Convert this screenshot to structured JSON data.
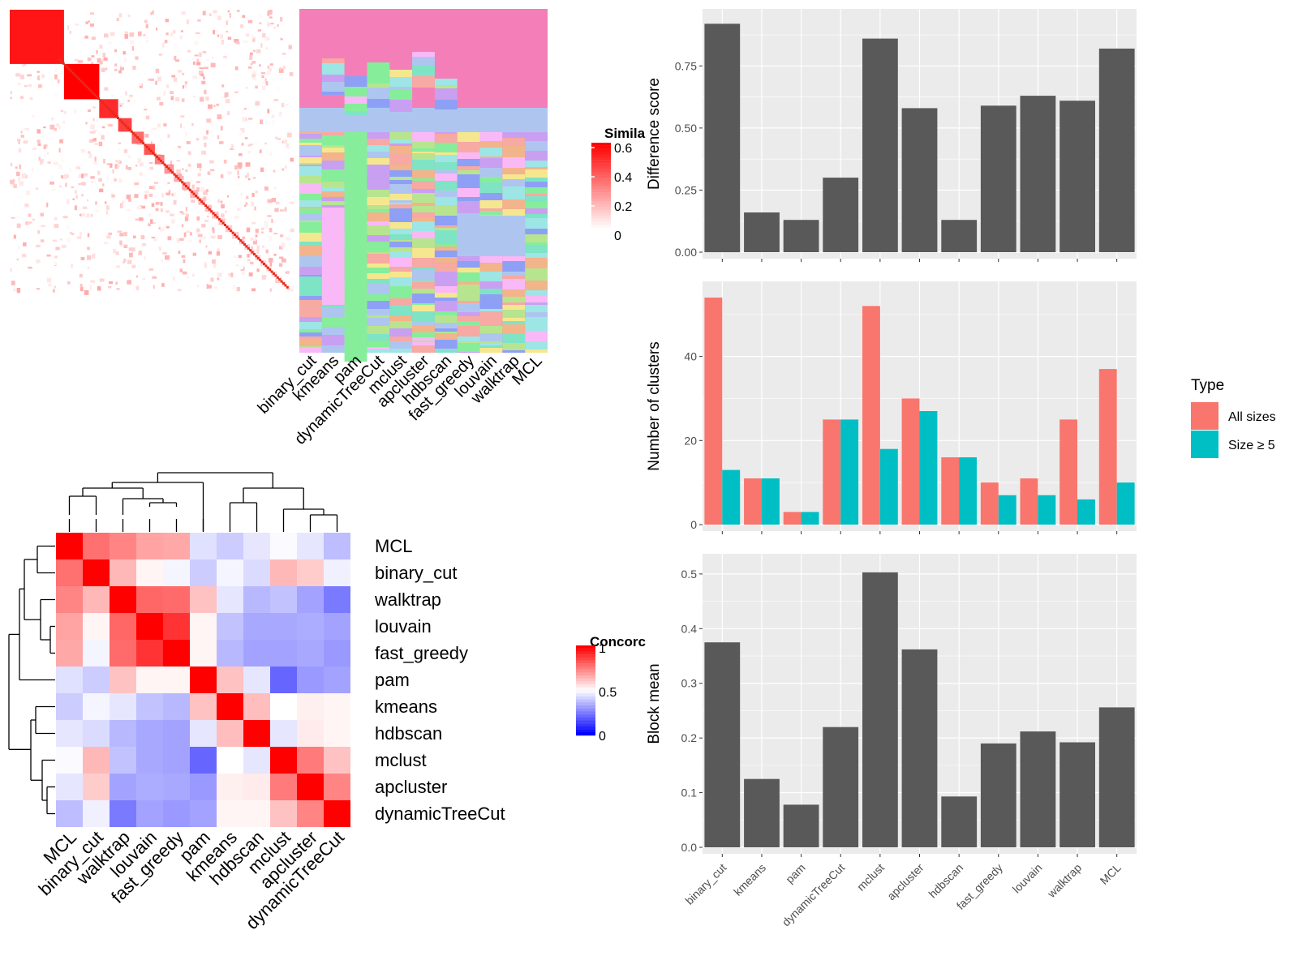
{
  "methods": [
    "binary_cut",
    "kmeans",
    "pam",
    "dynamicTreeCut",
    "mclust",
    "apcluster",
    "hdbscan",
    "fast_greedy",
    "louvain",
    "walktrap",
    "MCL"
  ],
  "colors": {
    "bar": "#595959",
    "all_sizes": "#F8766D",
    "size5": "#00BFC4",
    "panel_bg": "#EBEBEB",
    "grid": "#FFFFFF"
  },
  "similarity_panel": {
    "legend_title": "Simila",
    "legend_ticks": [
      "0.6",
      "0.4",
      "0.2",
      "0"
    ],
    "blocks": [
      0.55,
      0.6,
      0.5,
      0.45,
      0.35,
      0.4,
      0.3,
      0.25,
      0.2,
      0.2,
      0.18,
      0.16,
      0.15,
      0.14,
      0.13,
      0.12,
      0.12,
      0.11,
      0.1,
      0.1,
      0.1,
      0.09,
      0.09,
      0.09,
      0.08,
      0.08,
      0.08
    ]
  },
  "class_panel": {
    "column_labels": [
      "binary_cut",
      "kmeans",
      "pam",
      "dynamicTreeCut",
      "mclust",
      "apcluster",
      "hdbscan",
      "fast_greedy",
      "louvain",
      "walktrap",
      "MCL"
    ],
    "palette": [
      "#F47EB8",
      "#AEC6EF",
      "#86EE9A",
      "#F9B9F7",
      "#8DA0F5",
      "#B7E58F",
      "#F7A9A3",
      "#9EE5E5",
      "#F5E78F",
      "#C99FF2",
      "#7FE3C5",
      "#F2B48A"
    ]
  },
  "concordance_panel": {
    "legend_title": "Concorc",
    "legend_ticks": [
      "1",
      "0.5",
      "0"
    ],
    "row_labels": [
      "MCL",
      "binary_cut",
      "walktrap",
      "louvain",
      "fast_greedy",
      "pam",
      "kmeans",
      "hdbscan",
      "mclust",
      "apcluster",
      "dynamicTreeCut"
    ],
    "col_labels": [
      "MCL",
      "binary_cut",
      "walktrap",
      "louvain",
      "fast_greedy",
      "pam",
      "kmeans",
      "hdbscan",
      "mclust",
      "apcluster",
      "dynamicTreeCut"
    ],
    "matrix": [
      [
        1.0,
        0.78,
        0.74,
        0.68,
        0.67,
        0.44,
        0.4,
        0.45,
        0.49,
        0.45,
        0.37
      ],
      [
        0.78,
        1.0,
        0.64,
        0.52,
        0.48,
        0.4,
        0.48,
        0.43,
        0.64,
        0.6,
        0.47
      ],
      [
        0.74,
        0.64,
        1.0,
        0.8,
        0.79,
        0.62,
        0.45,
        0.36,
        0.38,
        0.32,
        0.24
      ],
      [
        0.68,
        0.52,
        0.8,
        1.0,
        0.9,
        0.52,
        0.38,
        0.33,
        0.33,
        0.34,
        0.32
      ],
      [
        0.67,
        0.48,
        0.79,
        0.9,
        1.0,
        0.52,
        0.36,
        0.32,
        0.32,
        0.33,
        0.3
      ],
      [
        0.44,
        0.4,
        0.62,
        0.52,
        0.52,
        1.0,
        0.62,
        0.45,
        0.2,
        0.3,
        0.32
      ],
      [
        0.4,
        0.48,
        0.45,
        0.38,
        0.36,
        0.62,
        1.0,
        0.63,
        0.5,
        0.53,
        0.52
      ],
      [
        0.45,
        0.43,
        0.36,
        0.33,
        0.32,
        0.45,
        0.63,
        1.0,
        0.45,
        0.54,
        0.52
      ],
      [
        0.49,
        0.64,
        0.38,
        0.33,
        0.32,
        0.2,
        0.5,
        0.45,
        1.0,
        0.76,
        0.62
      ],
      [
        0.45,
        0.6,
        0.32,
        0.34,
        0.33,
        0.3,
        0.53,
        0.54,
        0.76,
        1.0,
        0.74
      ],
      [
        0.37,
        0.47,
        0.24,
        0.32,
        0.3,
        0.32,
        0.52,
        0.52,
        0.62,
        0.74,
        1.0
      ]
    ]
  },
  "chart_data": [
    {
      "type": "bar",
      "categories": [
        "binary_cut",
        "kmeans",
        "pam",
        "dynamicTreeCut",
        "mclust",
        "apcluster",
        "hdbscan",
        "fast_greedy",
        "louvain",
        "walktrap",
        "MCL"
      ],
      "values": [
        0.92,
        0.16,
        0.13,
        0.3,
        0.86,
        0.58,
        0.13,
        0.59,
        0.63,
        0.61,
        0.82
      ],
      "title": "",
      "xlabel": "",
      "ylabel": "Difference score",
      "ylim": [
        0,
        0.96
      ],
      "yticks": [
        "0.00",
        "0.25",
        "0.50",
        "0.75"
      ],
      "grid": true
    },
    {
      "type": "bar",
      "categories": [
        "binary_cut",
        "kmeans",
        "pam",
        "dynamicTreeCut",
        "mclust",
        "apcluster",
        "hdbscan",
        "fast_greedy",
        "louvain",
        "walktrap",
        "MCL"
      ],
      "series": [
        {
          "name": "All sizes",
          "values": [
            54,
            11,
            3,
            25,
            52,
            30,
            16,
            10,
            11,
            25,
            37
          ]
        },
        {
          "name": "Size ≥ 5",
          "values": [
            13,
            11,
            3,
            25,
            18,
            27,
            16,
            7,
            7,
            6,
            10
          ]
        }
      ],
      "title": "",
      "xlabel": "",
      "ylabel": "Number of clusters",
      "ylim": [
        0,
        56.7
      ],
      "yticks": [
        "0",
        "20",
        "40"
      ],
      "legend": {
        "title": "Type",
        "position": "right"
      },
      "grid": true
    },
    {
      "type": "bar",
      "categories": [
        "binary_cut",
        "kmeans",
        "pam",
        "dynamicTreeCut",
        "mclust",
        "apcluster",
        "hdbscan",
        "fast_greedy",
        "louvain",
        "walktrap",
        "MCL"
      ],
      "values": [
        0.375,
        0.125,
        0.078,
        0.22,
        0.503,
        0.362,
        0.093,
        0.19,
        0.212,
        0.192,
        0.256
      ],
      "title": "",
      "xlabel": "",
      "ylabel": "Block mean",
      "ylim": [
        0,
        0.528
      ],
      "yticks": [
        "0.0",
        "0.1",
        "0.2",
        "0.3",
        "0.4",
        "0.5"
      ],
      "grid": true
    }
  ]
}
